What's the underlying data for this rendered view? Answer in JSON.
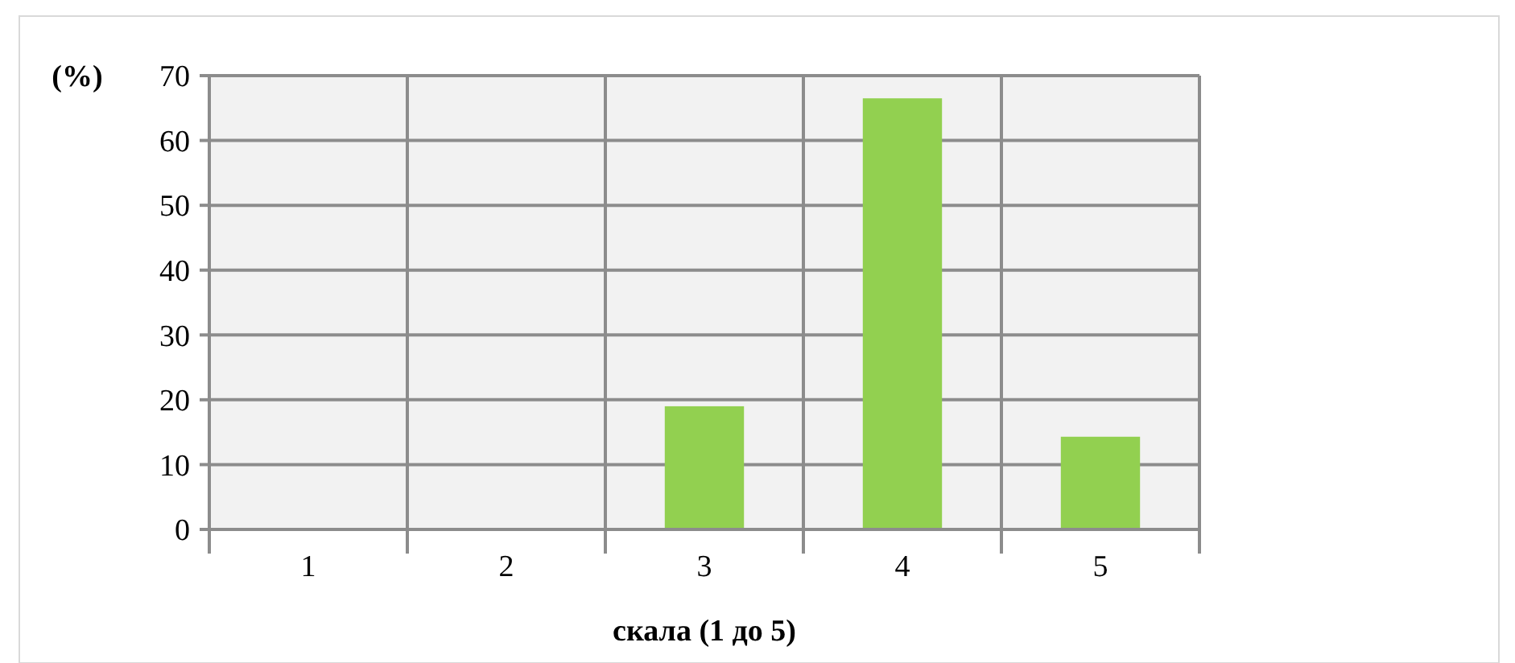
{
  "chart_data": {
    "type": "bar",
    "ylabel": "(%)",
    "xlabel": "скала (1 до 5)",
    "categories": [
      "1",
      "2",
      "3",
      "4",
      "5"
    ],
    "values": [
      0,
      0,
      19,
      66.5,
      14.3
    ],
    "color": "#92d050",
    "ylim": [
      0,
      70
    ],
    "yticks": [
      0,
      10,
      20,
      30,
      40,
      50,
      60,
      70
    ],
    "grid": true
  }
}
